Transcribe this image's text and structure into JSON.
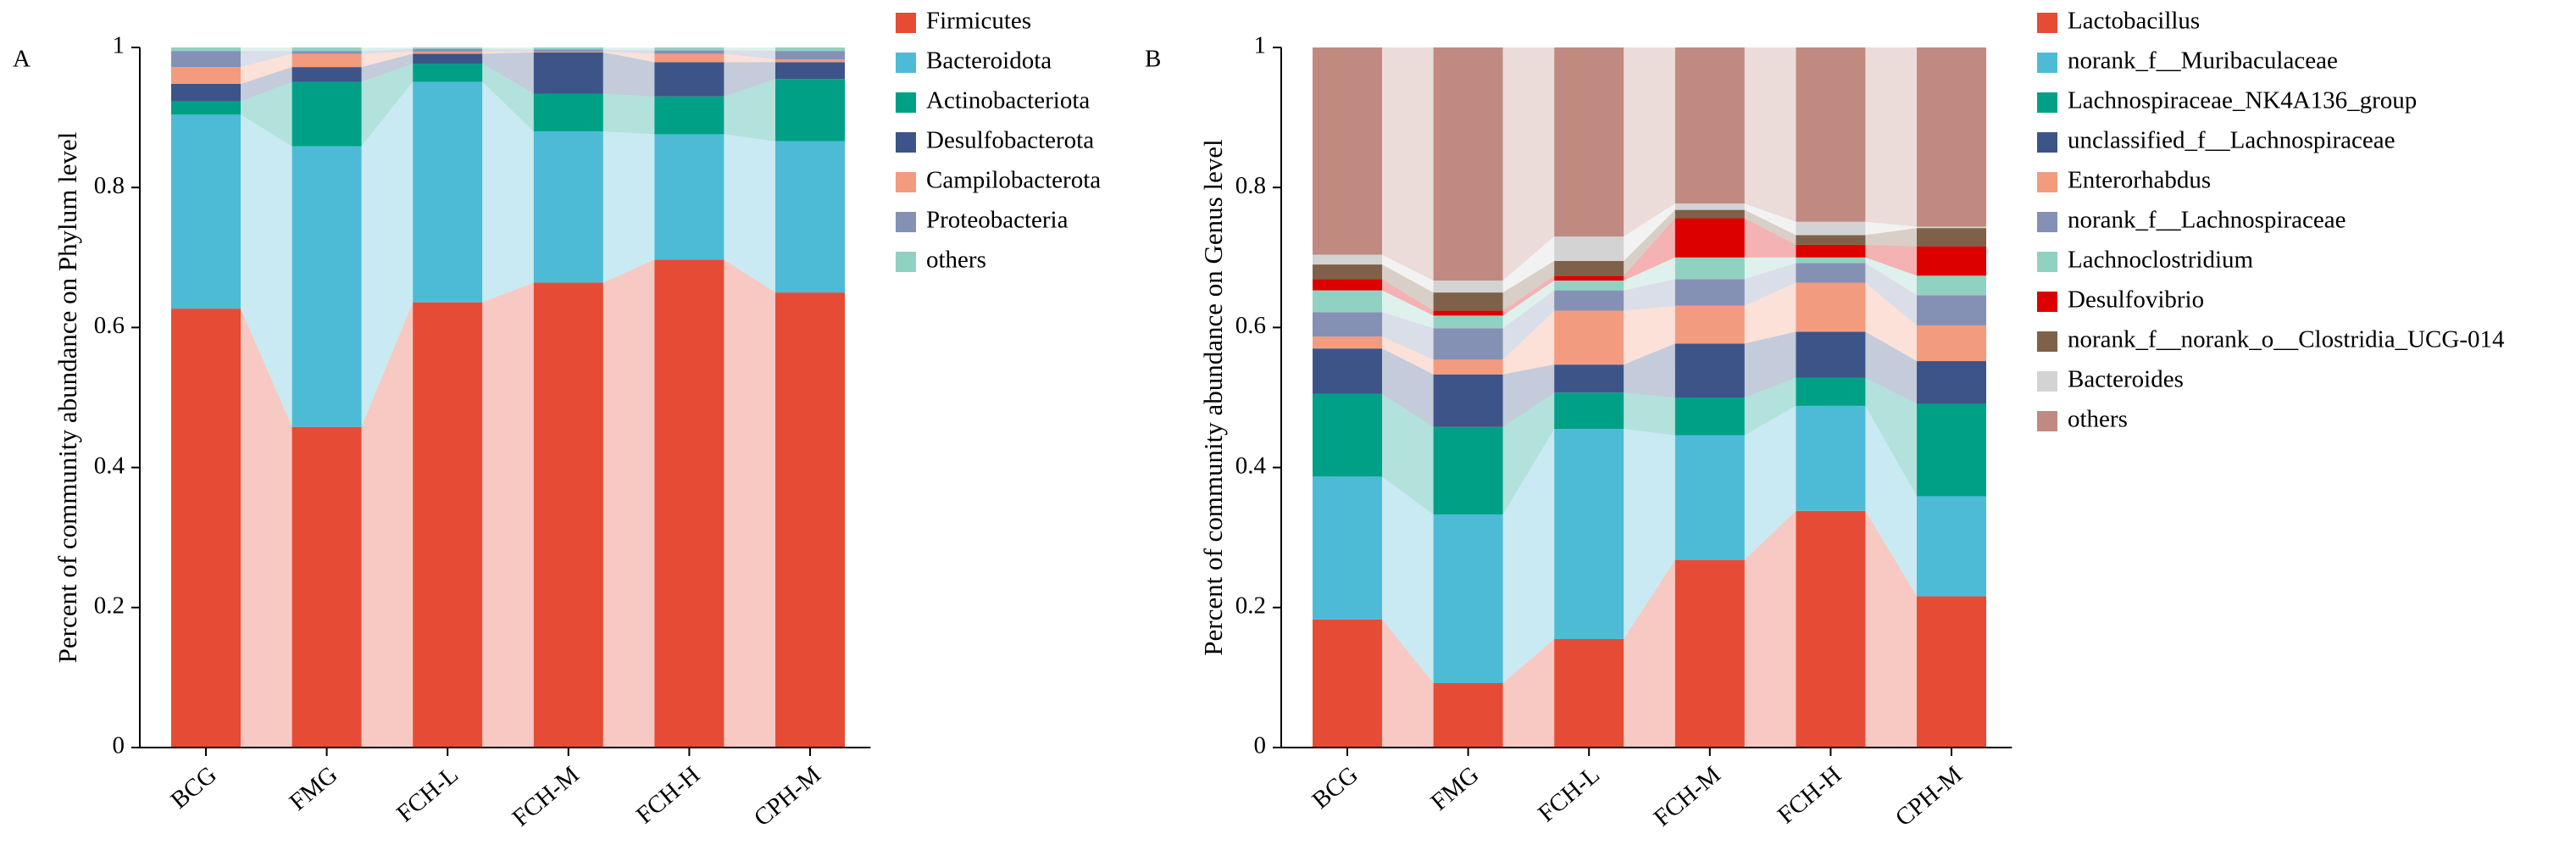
{
  "chart_data": [
    {
      "type": "bar",
      "stacked": true,
      "panel_label": "A",
      "y_label": "Percent of community abundance on Phylum level",
      "categories": [
        "BCG",
        "FMG",
        "FCH-L",
        "FCH-M",
        "FCH-H",
        "CPH-M"
      ],
      "ylim": [
        0,
        1
      ],
      "yticks": [
        0,
        0.2,
        0.4,
        0.6,
        0.8,
        1
      ],
      "series": [
        {
          "name": "Firmicutes",
          "color": "#e64b35",
          "values": [
            0.627,
            0.458,
            0.636,
            0.664,
            0.697,
            0.65
          ]
        },
        {
          "name": "Bacteroidota",
          "color": "#4dbbd5",
          "values": [
            0.277,
            0.401,
            0.315,
            0.216,
            0.179,
            0.216
          ]
        },
        {
          "name": "Actinobacteriota",
          "color": "#00a087",
          "values": [
            0.019,
            0.092,
            0.026,
            0.054,
            0.054,
            0.089
          ]
        },
        {
          "name": "Desulfobacterota",
          "color": "#3c5488",
          "values": [
            0.025,
            0.021,
            0.014,
            0.059,
            0.049,
            0.024
          ]
        },
        {
          "name": "Campilobacterota",
          "color": "#f39b7f",
          "values": [
            0.024,
            0.019,
            0.003,
            0.001,
            0.012,
            0.004
          ]
        },
        {
          "name": "Proteobacteria",
          "color": "#8491b4",
          "values": [
            0.023,
            0.004,
            0.004,
            0.003,
            0.005,
            0.012
          ]
        },
        {
          "name": "others",
          "color": "#91d1c2",
          "values": [
            0.005,
            0.005,
            0.002,
            0.003,
            0.004,
            0.005
          ]
        }
      ]
    },
    {
      "type": "bar",
      "stacked": true,
      "panel_label": "B",
      "y_label": "Percent of community abundance on Genus level",
      "categories": [
        "BCG",
        "FMG",
        "FCH-L",
        "FCH-M",
        "FCH-H",
        "CPH-M"
      ],
      "ylim": [
        0,
        1
      ],
      "yticks": [
        0,
        0.2,
        0.4,
        0.6,
        0.8,
        1
      ],
      "series": [
        {
          "name": "Lactobacillus",
          "color": "#e64b35",
          "values": [
            0.183,
            0.092,
            0.155,
            0.268,
            0.338,
            0.216
          ]
        },
        {
          "name": "norank_f__Muribaculaceae",
          "color": "#4dbbd5",
          "values": [
            0.204,
            0.241,
            0.3,
            0.178,
            0.15,
            0.143
          ]
        },
        {
          "name": "Lachnospiraceae_NK4A136_group",
          "color": "#00a087",
          "values": [
            0.118,
            0.125,
            0.052,
            0.054,
            0.04,
            0.132
          ]
        },
        {
          "name": "unclassified_f__Lachnospiraceae",
          "color": "#3c5488",
          "values": [
            0.065,
            0.075,
            0.04,
            0.077,
            0.066,
            0.061
          ]
        },
        {
          "name": "Enterorhabdus",
          "color": "#f39b7f",
          "values": [
            0.017,
            0.021,
            0.077,
            0.054,
            0.07,
            0.051
          ]
        },
        {
          "name": "norank_f__Lachnospiraceae",
          "color": "#8491b4",
          "values": [
            0.035,
            0.045,
            0.029,
            0.038,
            0.028,
            0.043
          ]
        },
        {
          "name": "Lachnoclostridium",
          "color": "#91d1c2",
          "values": [
            0.031,
            0.018,
            0.014,
            0.031,
            0.008,
            0.028
          ]
        },
        {
          "name": "Desulfovibrio",
          "color": "#dc0000",
          "values": [
            0.016,
            0.007,
            0.007,
            0.056,
            0.018,
            0.042
          ]
        },
        {
          "name": "norank_f__norank_o__Clostridia_UCG-014",
          "color": "#7e6148",
          "values": [
            0.021,
            0.026,
            0.021,
            0.012,
            0.014,
            0.026
          ]
        },
        {
          "name": "Bacteroides",
          "color": "#d3d3d3",
          "values": [
            0.014,
            0.017,
            0.035,
            0.009,
            0.019,
            0.002
          ]
        },
        {
          "name": "others",
          "color": "#c08a80",
          "values": [
            0.296,
            0.333,
            0.27,
            0.223,
            0.249,
            0.256
          ]
        }
      ]
    }
  ]
}
